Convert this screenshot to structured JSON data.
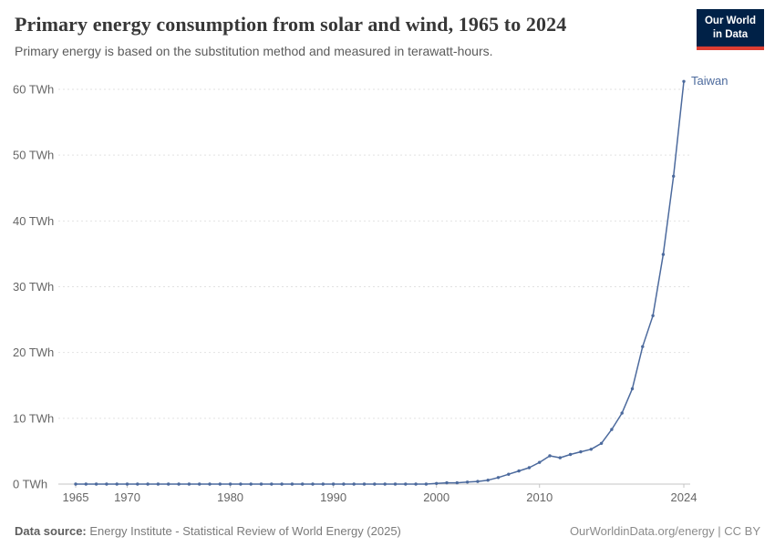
{
  "header": {
    "title": "Primary energy consumption from solar and wind, 1965 to 2024",
    "subtitle": "Primary energy is based on the substitution method and measured in terawatt-hours.",
    "logo": {
      "line1": "Our World",
      "line2": "in Data"
    }
  },
  "chart_data": {
    "type": "line",
    "title": "Primary energy consumption from solar and wind, 1965 to 2024",
    "series_label": "Taiwan",
    "unit": "TWh",
    "ylabel": "",
    "xlabel": "",
    "ylim": [
      0,
      62
    ],
    "yticks": [
      0,
      10,
      20,
      30,
      40,
      50,
      60
    ],
    "ytick_format": "{v} TWh",
    "xticks": [
      1965,
      1970,
      1980,
      1990,
      2000,
      2010,
      2024
    ],
    "grid": true,
    "legend_position": "end-of-line",
    "line_color": "#4c6a9d",
    "x": [
      1965,
      1966,
      1967,
      1968,
      1969,
      1970,
      1971,
      1972,
      1973,
      1974,
      1975,
      1976,
      1977,
      1978,
      1979,
      1980,
      1981,
      1982,
      1983,
      1984,
      1985,
      1986,
      1987,
      1988,
      1989,
      1990,
      1991,
      1992,
      1993,
      1994,
      1995,
      1996,
      1997,
      1998,
      1999,
      2000,
      2001,
      2002,
      2003,
      2004,
      2005,
      2006,
      2007,
      2008,
      2009,
      2010,
      2011,
      2012,
      2013,
      2014,
      2015,
      2016,
      2017,
      2018,
      2019,
      2020,
      2021,
      2022,
      2023,
      2024
    ],
    "values": [
      0,
      0,
      0,
      0,
      0,
      0,
      0,
      0,
      0,
      0,
      0,
      0,
      0,
      0,
      0,
      0,
      0,
      0,
      0,
      0,
      0,
      0,
      0,
      0,
      0,
      0,
      0,
      0,
      0,
      0,
      0,
      0,
      0,
      0,
      0,
      0.1,
      0.2,
      0.2,
      0.3,
      0.4,
      0.6,
      1.0,
      1.5,
      2.0,
      2.5,
      3.3,
      4.3,
      4.0,
      4.5,
      4.9,
      5.3,
      6.2,
      8.3,
      10.8,
      14.5,
      20.9,
      25.6,
      34.9,
      46.8,
      61.2
    ]
  },
  "footer": {
    "source_label": "Data source:",
    "source_text": " Energy Institute - Statistical Review of World Energy (2025)",
    "credit": "OurWorldinData.org/energy | CC BY"
  }
}
